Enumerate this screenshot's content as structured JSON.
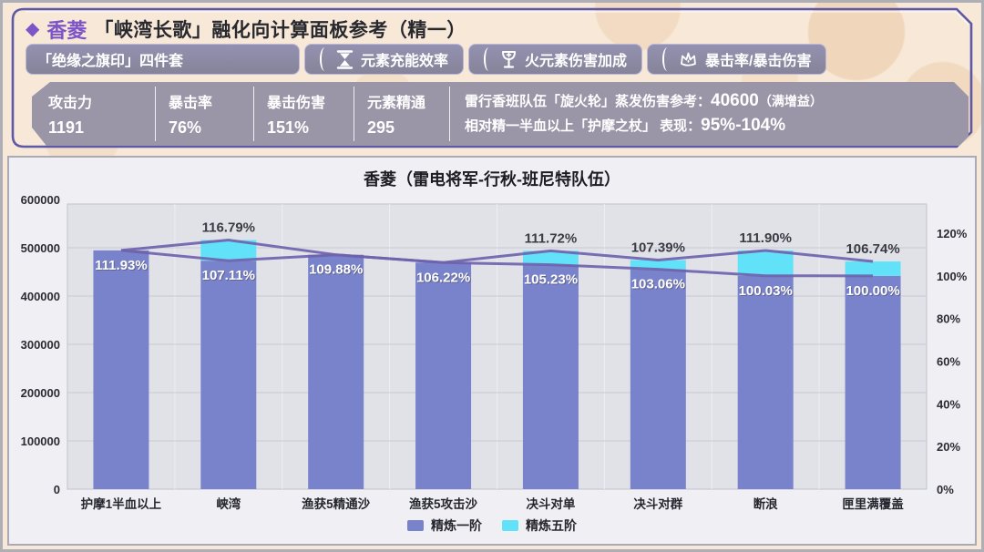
{
  "header": {
    "diamond": "◆",
    "title_name": "香菱",
    "title_rest": "「峡湾长歌」融化向计算面板参考（精一）",
    "artifact_pill": "「绝缘之旗印」四件套",
    "stat_pills": [
      {
        "icon": "hourglass-icon",
        "label": "元素充能效率"
      },
      {
        "icon": "goblet-icon",
        "label": "火元素伤害加成"
      },
      {
        "icon": "crown-icon",
        "label": "暴击率/暴击伤害"
      }
    ],
    "stats": [
      {
        "label": "攻击力",
        "value": "1191"
      },
      {
        "label": "暴击率",
        "value": "76%"
      },
      {
        "label": "暴击伤害",
        "value": "151%"
      },
      {
        "label": "元素精通",
        "value": "295"
      }
    ],
    "notes": [
      {
        "text": "雷行香班队伍「旋火轮」蒸发伤害参考：",
        "value": "40600",
        "suffix": "（满增益）"
      },
      {
        "text": "相对精一半血以上「护摩之杖」 表现：",
        "value": "95%-104%",
        "suffix": ""
      }
    ]
  },
  "chart_data": {
    "type": "bar",
    "title": "香菱（雷电将军-行秋-班尼特队伍）",
    "categories": [
      "护摩1半血以上",
      "峡湾",
      "渔获5精通沙",
      "渔获5攻击沙",
      "决斗对单",
      "决斗对群",
      "断浪",
      "匣里满覆盖"
    ],
    "series": [
      {
        "name": "精炼一阶",
        "color": "#7983cb",
        "values": [
          111.93,
          107.11,
          109.88,
          106.22,
          105.23,
          103.06,
          100.03,
          100.0
        ]
      },
      {
        "name": "精炼五阶",
        "color": "#62e2f8",
        "values": [
          111.93,
          116.79,
          109.88,
          106.22,
          111.72,
          107.39,
          111.9,
          106.74
        ]
      }
    ],
    "value_unit": "%",
    "left_axis": {
      "min": 0,
      "max": 600000,
      "ticks": [
        "0",
        "100000",
        "200000",
        "300000",
        "400000",
        "500000",
        "600000"
      ]
    },
    "right_axis": {
      "min": 0,
      "max": 120,
      "ticks": [
        "0%",
        "20%",
        "40%",
        "60%",
        "80%",
        "100%",
        "120%"
      ]
    },
    "line_color": "#6f63ac",
    "grid": true,
    "legend_position": "bottom"
  }
}
